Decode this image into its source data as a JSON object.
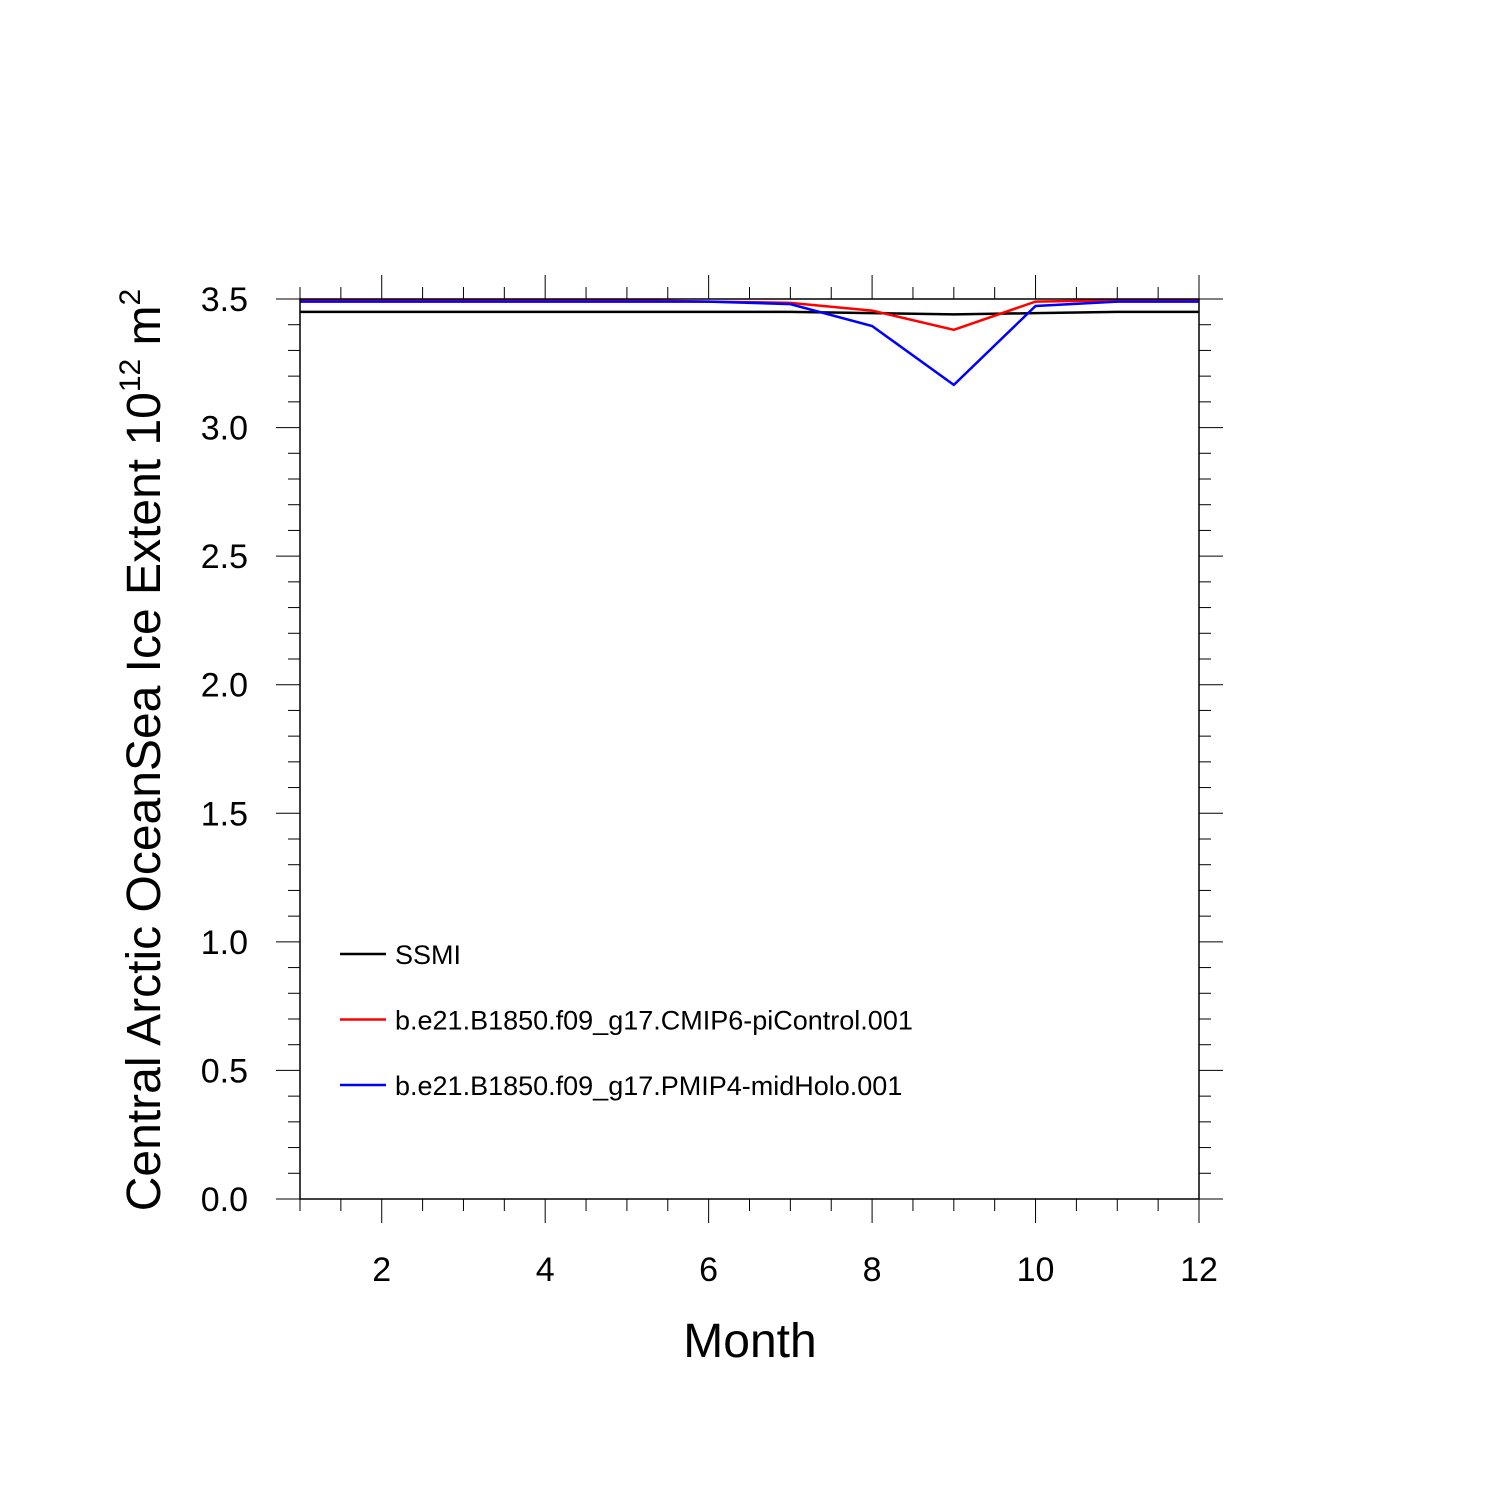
{
  "chart_data": {
    "type": "line",
    "x_label": "Month",
    "y_label": [
      "Central Arctic OceanSea Ice Extent 10",
      "12",
      " m",
      "2"
    ],
    "x": [
      1,
      2,
      3,
      4,
      5,
      6,
      7,
      8,
      9,
      10,
      11,
      12
    ],
    "series": [
      {
        "name": "SSMI",
        "color": "#000000",
        "values": [
          3.45,
          3.45,
          3.45,
          3.45,
          3.45,
          3.45,
          3.45,
          3.445,
          3.44,
          3.445,
          3.45,
          3.45
        ]
      },
      {
        "name": "b.e21.B1850.f09_g17.CMIP6-piControl.001",
        "color": "#ff0000",
        "values": [
          3.495,
          3.495,
          3.495,
          3.495,
          3.495,
          3.49,
          3.485,
          3.455,
          3.38,
          3.49,
          3.495,
          3.495
        ]
      },
      {
        "name": "b.e21.B1850.f09_g17.PMIP4-midHolo.001",
        "color": "#0000ff",
        "values": [
          3.49,
          3.49,
          3.49,
          3.49,
          3.49,
          3.49,
          3.48,
          3.395,
          3.166,
          3.473,
          3.49,
          3.49
        ]
      }
    ],
    "xlim": [
      1,
      12
    ],
    "ylim": [
      0,
      3.5
    ],
    "xticks": [
      2,
      4,
      6,
      8,
      10,
      12
    ],
    "xminorticks": [
      1,
      1.5,
      2.5,
      3,
      3.5,
      4.5,
      5,
      5.5,
      6.5,
      7,
      7.5,
      8.5,
      9,
      9.5,
      10.5,
      11,
      11.5
    ],
    "yticks": [
      {
        "value": 0,
        "label": "0.0"
      },
      {
        "value": 0.5,
        "label": "0.5"
      },
      {
        "value": 1,
        "label": "1.0"
      },
      {
        "value": 1.5,
        "label": "1.5"
      },
      {
        "value": 2,
        "label": "2.0"
      },
      {
        "value": 2.5,
        "label": "2.5"
      },
      {
        "value": 3,
        "label": "3.0"
      },
      {
        "value": 3.5,
        "label": "3.5"
      }
    ],
    "yminorticks": [
      0.1,
      0.2,
      0.3,
      0.4,
      0.6,
      0.7,
      0.8,
      0.9,
      1.1,
      1.2,
      1.3,
      1.4,
      1.6,
      1.7,
      1.8,
      1.9,
      2.1,
      2.2,
      2.3,
      2.4,
      2.6,
      2.7,
      2.8,
      2.9,
      3.1,
      3.2,
      3.3,
      3.4
    ],
    "legend": "lower left",
    "grid": false
  }
}
